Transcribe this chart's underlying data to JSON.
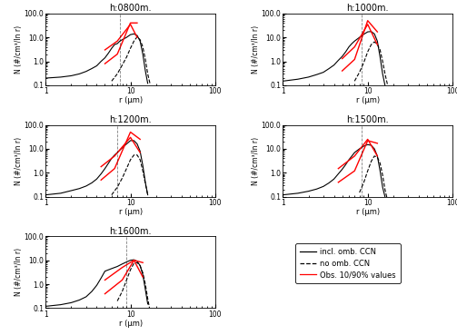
{
  "titles": [
    "h:0800m.",
    "h:1000m.",
    "h:1200m.",
    "h:1500m.",
    "h:1600m."
  ],
  "ylabel": "N (#/cm³/ln r)",
  "xlabel": "r (μm)",
  "xlim": [
    1,
    100
  ],
  "ylim": [
    0.1,
    100.0
  ],
  "legend_labels": [
    "incl. omb. CCN",
    "no omb. CCN",
    "Obs. 10/90% values"
  ],
  "panels": {
    "0800": {
      "solid_r": [
        1.0,
        1.5,
        2.0,
        2.5,
        3.0,
        3.5,
        4.0,
        4.5,
        5.0,
        5.5,
        6.0,
        6.5,
        7.0,
        7.5,
        8.0,
        9.0,
        10.0,
        11.0,
        12.0,
        13.0,
        14.0,
        15.0,
        16.0
      ],
      "solid_n": [
        0.2,
        0.22,
        0.25,
        0.3,
        0.38,
        0.5,
        0.65,
        1.0,
        1.4,
        2.2,
        3.5,
        5.0,
        5.5,
        7.0,
        8.0,
        10.0,
        13.0,
        14.0,
        12.0,
        7.0,
        2.0,
        0.4,
        0.12
      ],
      "dashed_r": [
        6.0,
        7.0,
        8.0,
        9.0,
        10.0,
        11.0,
        12.0,
        13.0,
        14.0,
        15.0,
        16.0,
        17.0
      ],
      "dashed_n": [
        0.15,
        0.3,
        0.7,
        1.5,
        3.5,
        7.0,
        10.5,
        8.0,
        4.0,
        1.2,
        0.3,
        0.12
      ],
      "obs_lo_r": [
        5.0,
        7.0,
        10.0,
        12.0
      ],
      "obs_lo_n": [
        3.0,
        7.0,
        35.0,
        10.0
      ],
      "obs_hi_r": [
        5.0,
        7.0,
        10.0,
        12.0
      ],
      "obs_hi_n": [
        0.8,
        2.0,
        40.0,
        40.0
      ],
      "vline_x": 7.5
    },
    "1000": {
      "solid_r": [
        1.0,
        1.5,
        2.0,
        2.5,
        3.0,
        3.5,
        4.0,
        4.5,
        5.0,
        5.5,
        6.0,
        6.5,
        7.0,
        8.0,
        9.0,
        10.0,
        11.0,
        12.0,
        13.0,
        14.0,
        15.0,
        16.0
      ],
      "solid_n": [
        0.15,
        0.18,
        0.22,
        0.28,
        0.35,
        0.5,
        0.7,
        1.1,
        1.6,
        2.5,
        4.0,
        5.5,
        7.0,
        10.0,
        13.5,
        17.0,
        17.5,
        14.0,
        7.0,
        1.5,
        0.3,
        0.1
      ],
      "dashed_r": [
        7.0,
        8.0,
        9.0,
        10.0,
        11.0,
        12.0,
        13.0,
        14.0,
        15.0,
        16.0,
        17.0,
        18.0
      ],
      "dashed_n": [
        0.15,
        0.35,
        0.9,
        2.5,
        5.0,
        6.5,
        5.0,
        3.0,
        1.0,
        0.3,
        0.12,
        0.05
      ],
      "obs_lo_r": [
        5.0,
        7.0,
        10.0,
        13.0
      ],
      "obs_lo_n": [
        1.3,
        4.0,
        35.0,
        5.0
      ],
      "obs_hi_r": [
        5.0,
        7.0,
        10.0,
        13.0
      ],
      "obs_hi_n": [
        0.4,
        1.2,
        50.0,
        17.0
      ],
      "vline_x": 8.5
    },
    "1200": {
      "solid_r": [
        1.0,
        1.5,
        2.0,
        2.5,
        3.0,
        3.5,
        4.0,
        4.5,
        5.0,
        5.5,
        6.0,
        6.5,
        7.0,
        8.0,
        9.0,
        10.0,
        11.0,
        12.0,
        13.0,
        14.0,
        15.0,
        16.0
      ],
      "solid_n": [
        0.12,
        0.14,
        0.18,
        0.22,
        0.28,
        0.38,
        0.55,
        0.9,
        1.5,
        2.5,
        4.0,
        5.5,
        7.0,
        11.0,
        16.0,
        22.0,
        22.0,
        16.0,
        8.0,
        2.0,
        0.4,
        0.12
      ],
      "dashed_r": [
        6.0,
        7.0,
        8.0,
        9.0,
        10.0,
        11.0,
        12.0,
        13.0,
        14.0,
        15.0,
        16.0
      ],
      "dashed_n": [
        0.12,
        0.25,
        0.6,
        1.5,
        3.5,
        5.5,
        5.5,
        3.5,
        1.2,
        0.35,
        0.12
      ],
      "obs_lo_r": [
        4.5,
        6.5,
        10.0,
        13.0
      ],
      "obs_lo_n": [
        1.8,
        5.0,
        30.0,
        7.0
      ],
      "obs_hi_r": [
        4.5,
        6.5,
        10.0,
        13.0
      ],
      "obs_hi_n": [
        0.5,
        1.5,
        50.0,
        25.0
      ],
      "vline_x": 7.0
    },
    "1500": {
      "solid_r": [
        1.0,
        1.5,
        2.0,
        2.5,
        3.0,
        3.5,
        4.0,
        4.5,
        5.0,
        5.5,
        6.0,
        6.5,
        7.0,
        8.0,
        9.0,
        10.0,
        11.0,
        12.0,
        13.0,
        14.0,
        15.0,
        16.0
      ],
      "solid_n": [
        0.12,
        0.14,
        0.17,
        0.21,
        0.27,
        0.38,
        0.55,
        0.9,
        1.4,
        2.2,
        3.5,
        5.0,
        7.0,
        10.0,
        13.0,
        15.0,
        14.0,
        10.0,
        5.0,
        1.2,
        0.25,
        0.1
      ],
      "dashed_r": [
        8.0,
        9.0,
        10.0,
        11.0,
        12.0,
        13.0,
        14.0,
        15.0,
        16.0,
        17.0
      ],
      "dashed_n": [
        0.15,
        0.4,
        1.2,
        3.0,
        5.0,
        4.5,
        2.5,
        0.8,
        0.2,
        0.08
      ],
      "obs_lo_r": [
        4.5,
        7.0,
        10.0,
        13.0
      ],
      "obs_lo_n": [
        1.5,
        5.0,
        25.0,
        5.0
      ],
      "obs_hi_r": [
        4.5,
        7.0,
        10.0,
        13.0
      ],
      "obs_hi_n": [
        0.4,
        1.2,
        22.0,
        17.0
      ],
      "vline_x": 8.5
    },
    "1600": {
      "solid_r": [
        1.0,
        1.5,
        2.0,
        2.5,
        3.0,
        3.5,
        4.0,
        4.5,
        5.0,
        6.0,
        7.0,
        8.0,
        9.0,
        10.0,
        11.0,
        12.0,
        13.0,
        14.0,
        15.0,
        16.0
      ],
      "solid_n": [
        0.12,
        0.14,
        0.17,
        0.22,
        0.3,
        0.5,
        0.9,
        1.8,
        3.5,
        4.5,
        5.5,
        7.0,
        8.5,
        10.0,
        10.5,
        9.0,
        6.0,
        2.5,
        0.6,
        0.15
      ],
      "dashed_r": [
        7.0,
        8.0,
        9.0,
        10.0,
        11.0,
        12.0,
        13.0,
        14.0,
        15.0,
        16.0,
        17.0
      ],
      "dashed_n": [
        0.2,
        0.5,
        1.5,
        4.0,
        7.5,
        8.0,
        6.0,
        3.0,
        1.0,
        0.25,
        0.08
      ],
      "obs_lo_r": [
        5.0,
        8.0,
        11.0,
        14.0
      ],
      "obs_lo_n": [
        1.5,
        5.0,
        10.0,
        2.0
      ],
      "obs_hi_r": [
        5.0,
        8.0,
        11.0,
        14.0
      ],
      "obs_hi_n": [
        0.4,
        1.5,
        10.0,
        8.0
      ],
      "vline_x": 9.0
    }
  }
}
